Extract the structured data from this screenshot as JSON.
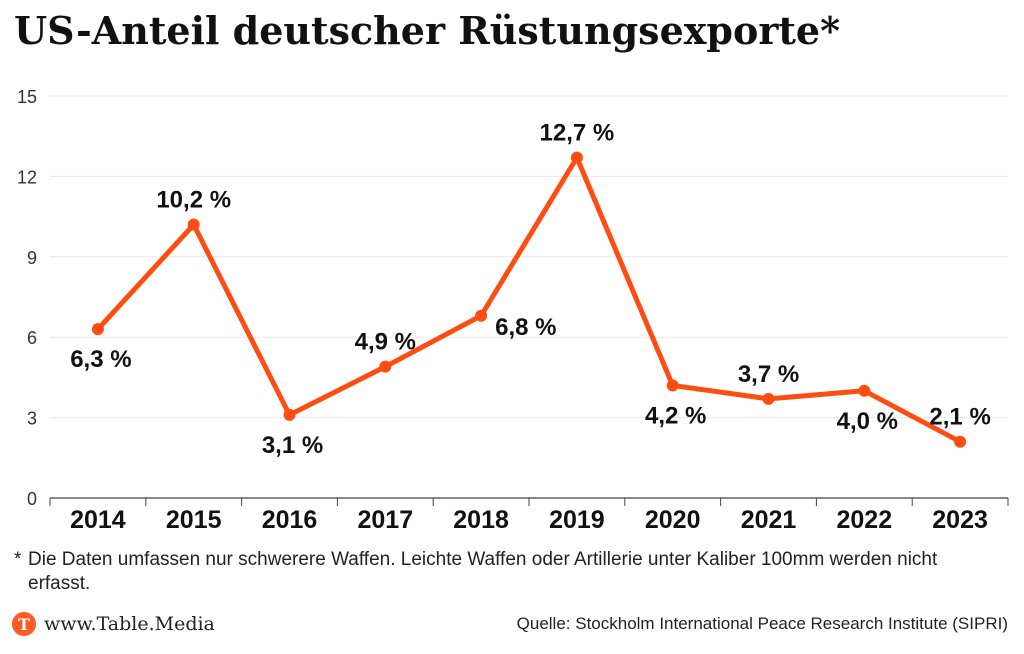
{
  "title": "US-Anteil deutscher Rüstungsexporte*",
  "chart_data": {
    "type": "line",
    "title": "US-Anteil deutscher Rüstungsexporte*",
    "categories": [
      "2014",
      "2015",
      "2016",
      "2017",
      "2018",
      "2019",
      "2020",
      "2021",
      "2022",
      "2023"
    ],
    "series": [
      {
        "values": [
          6.3,
          10.2,
          3.1,
          4.9,
          6.8,
          12.7,
          4.2,
          3.7,
          4.0,
          2.1
        ]
      }
    ],
    "data_labels": [
      "6,3 %",
      "10,2 %",
      "3,1 %",
      "4,9 %",
      "6,8 %",
      "12,7 %",
      "4,2 %",
      "3,7 %",
      "4,0 %",
      "2,1 %"
    ],
    "label_positions": [
      "below",
      "above",
      "below",
      "above",
      "right",
      "above",
      "below",
      "above",
      "below",
      "above"
    ],
    "yticks": [
      0,
      3,
      6,
      9,
      12,
      15
    ],
    "ylim": [
      0,
      15
    ],
    "grid": true,
    "line_color": "#ff4d12"
  },
  "footnote": {
    "marker": "*",
    "text": "Die Daten umfassen nur schwerere Waffen. Leichte Waffen oder Artillerie unter Kaliber 100mm werden nicht erfasst."
  },
  "footer": {
    "logo_letter": "T",
    "brand": "www.Table.Media",
    "source": "Quelle: Stockholm International Peace Research Institute (SIPRI)"
  }
}
